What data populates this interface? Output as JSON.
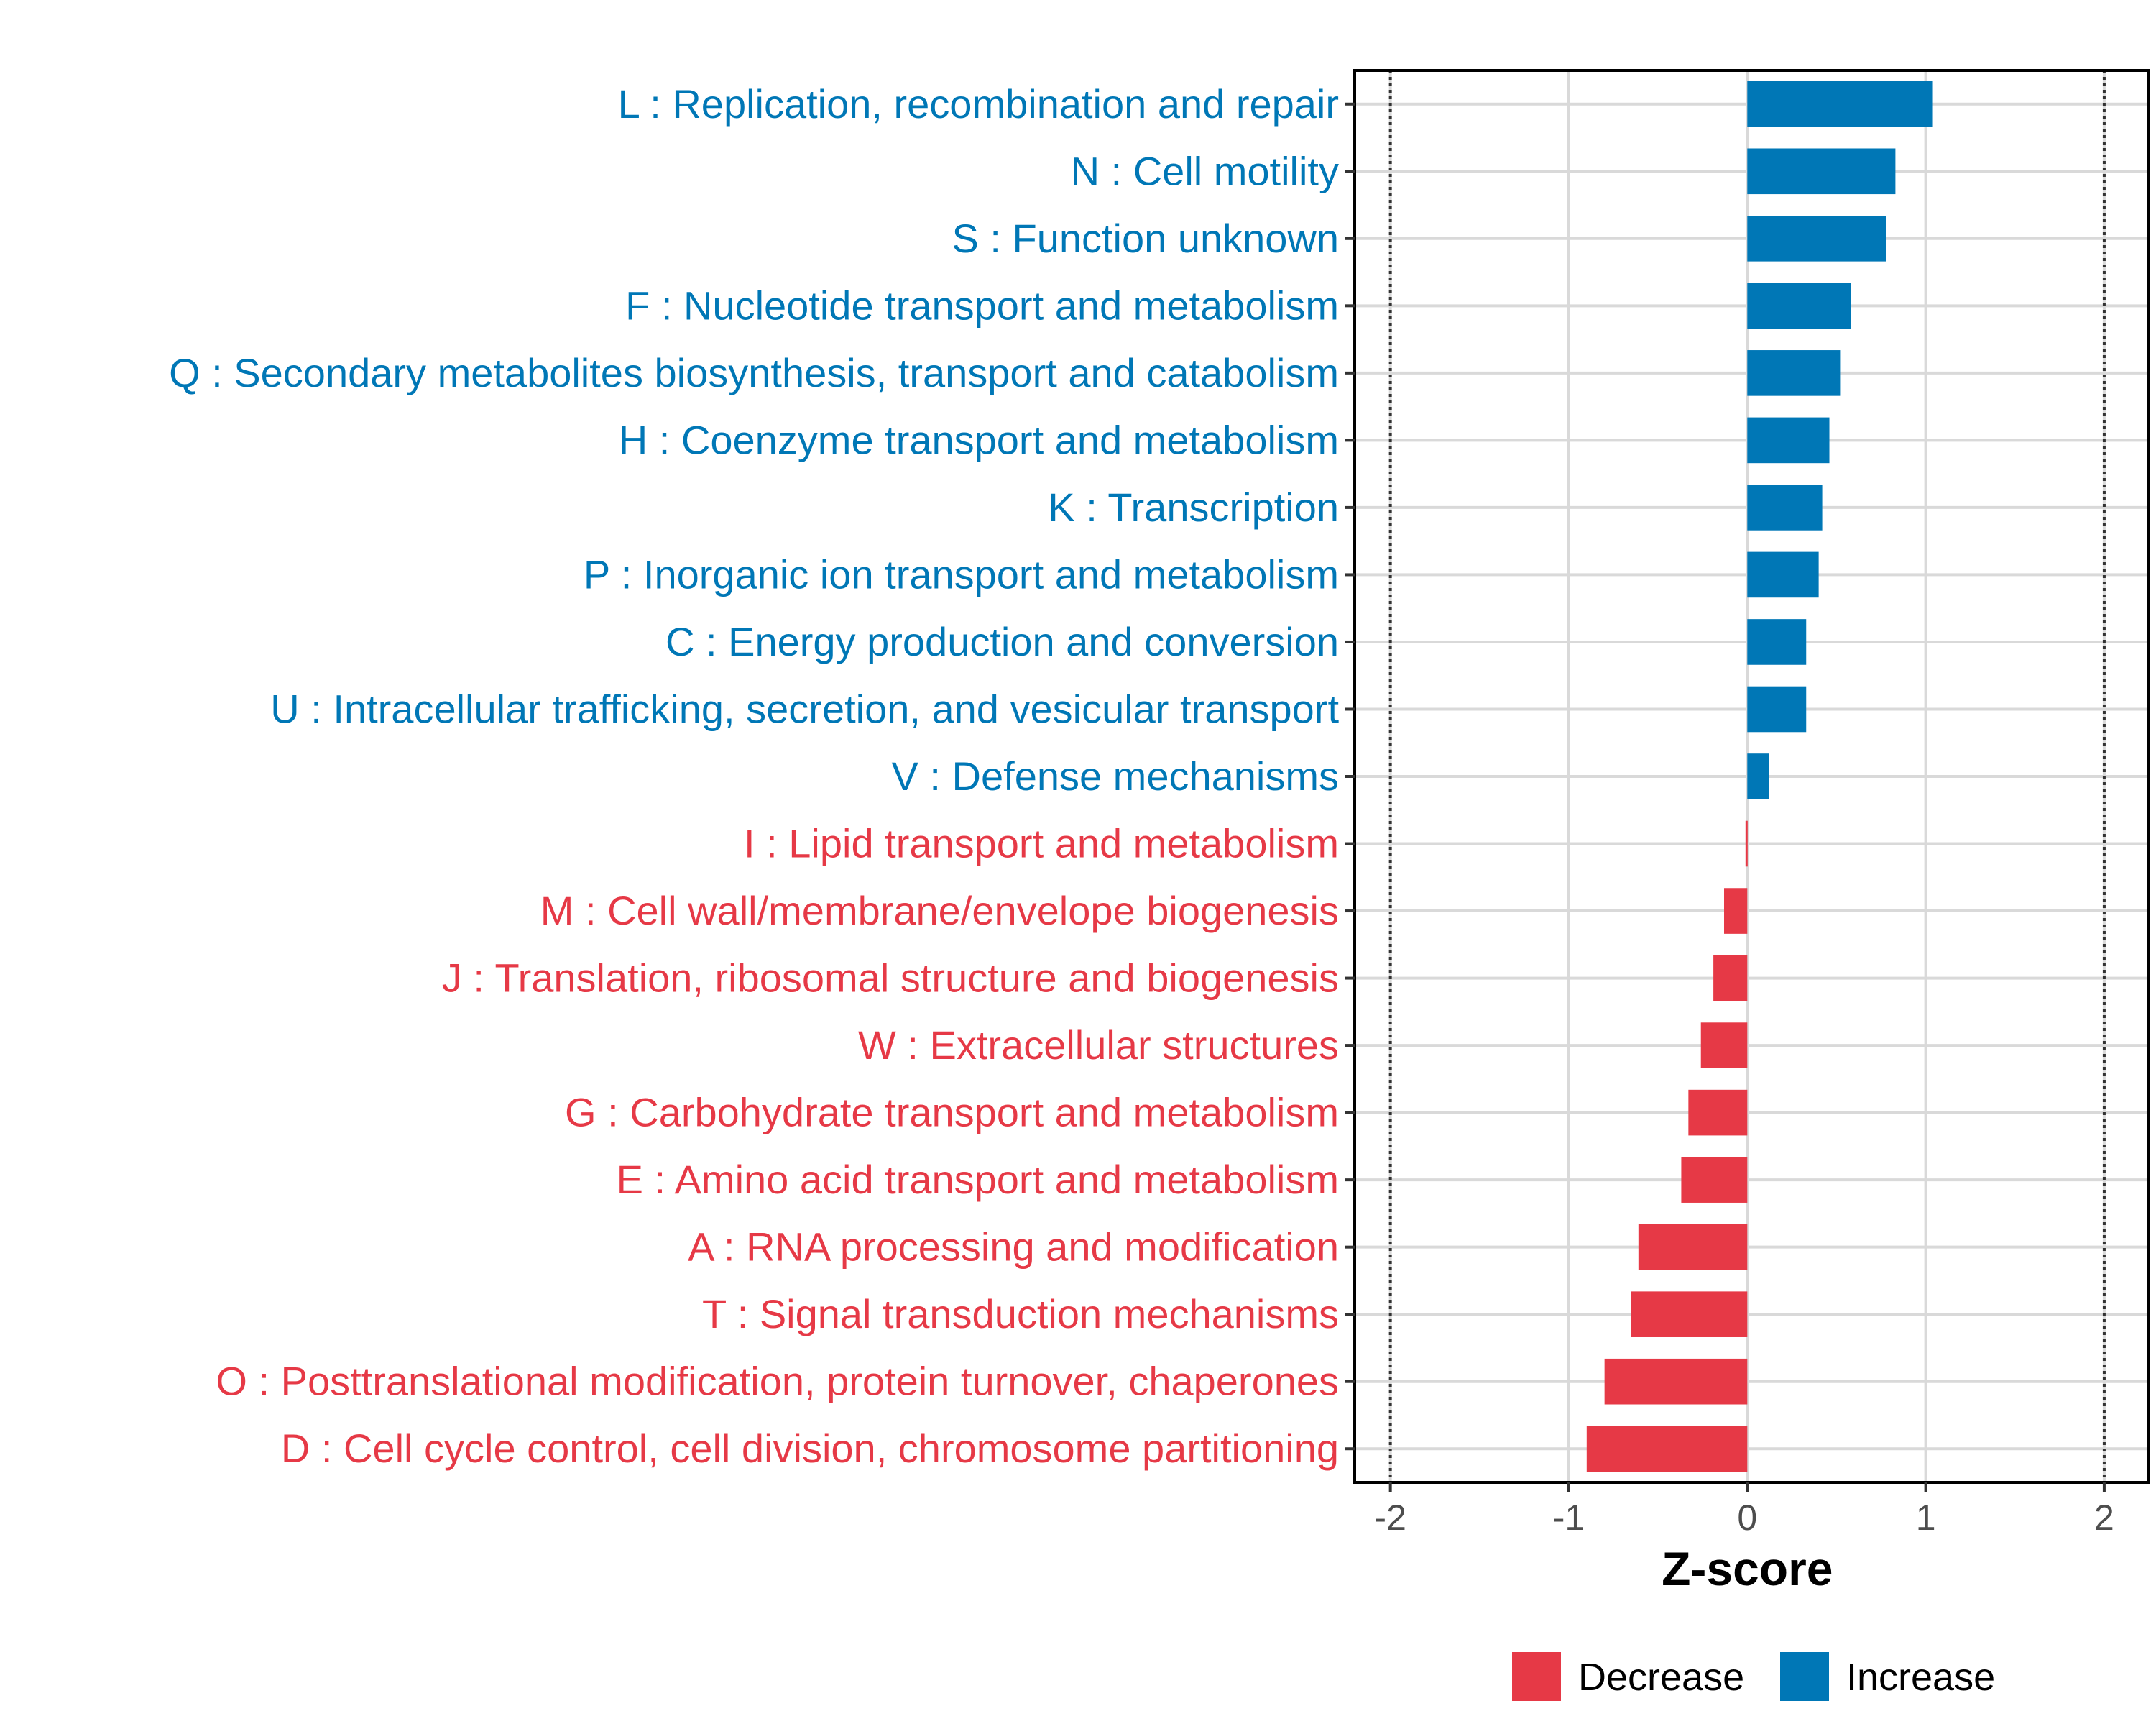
{
  "chart_data": {
    "type": "bar",
    "orientation": "horizontal",
    "xlabel": "Z-score",
    "ylabel": "",
    "xlim": [
      -2.2,
      2.25
    ],
    "x_ticks": [
      -2,
      -1,
      0,
      1,
      2
    ],
    "x_tick_labels": [
      "-2",
      "-1",
      "0",
      "1",
      "2"
    ],
    "reference_lines": [
      -2,
      2
    ],
    "grid": true,
    "legend_position": "bottom",
    "colors": {
      "Decrease": "#e63946",
      "Increase": "#0077b6"
    },
    "legend": [
      {
        "label": "Decrease",
        "color": "#e63946"
      },
      {
        "label": "Increase",
        "color": "#0077b6"
      }
    ],
    "bars": [
      {
        "category": "L : Replication, recombination and repair",
        "value": 1.04,
        "group": "Increase"
      },
      {
        "category": "N : Cell motility",
        "value": 0.83,
        "group": "Increase"
      },
      {
        "category": "S : Function unknown",
        "value": 0.78,
        "group": "Increase"
      },
      {
        "category": "F : Nucleotide transport and metabolism",
        "value": 0.58,
        "group": "Increase"
      },
      {
        "category": "Q : Secondary metabolites biosynthesis, transport and catabolism",
        "value": 0.52,
        "group": "Increase"
      },
      {
        "category": "H : Coenzyme transport and metabolism",
        "value": 0.46,
        "group": "Increase"
      },
      {
        "category": "K : Transcription",
        "value": 0.42,
        "group": "Increase"
      },
      {
        "category": "P : Inorganic ion transport and metabolism",
        "value": 0.4,
        "group": "Increase"
      },
      {
        "category": "C : Energy production and conversion",
        "value": 0.33,
        "group": "Increase"
      },
      {
        "category": "U : Intracellular trafficking, secretion, and vesicular transport",
        "value": 0.33,
        "group": "Increase"
      },
      {
        "category": "V : Defense mechanisms",
        "value": 0.12,
        "group": "Increase"
      },
      {
        "category": "I : Lipid transport and metabolism",
        "value": -0.01,
        "group": "Decrease"
      },
      {
        "category": "M : Cell wall/membrane/envelope biogenesis",
        "value": -0.13,
        "group": "Decrease"
      },
      {
        "category": "J : Translation, ribosomal structure and biogenesis",
        "value": -0.19,
        "group": "Decrease"
      },
      {
        "category": "W : Extracellular structures",
        "value": -0.26,
        "group": "Decrease"
      },
      {
        "category": "G : Carbohydrate transport and metabolism",
        "value": -0.33,
        "group": "Decrease"
      },
      {
        "category": "E : Amino acid transport and metabolism",
        "value": -0.37,
        "group": "Decrease"
      },
      {
        "category": "A : RNA processing and modification",
        "value": -0.61,
        "group": "Decrease"
      },
      {
        "category": "T : Signal transduction mechanisms",
        "value": -0.65,
        "group": "Decrease"
      },
      {
        "category": "O : Posttranslational modification, protein turnover, chaperones",
        "value": -0.8,
        "group": "Decrease"
      },
      {
        "category": "D : Cell cycle control, cell division, chromosome partitioning",
        "value": -0.9,
        "group": "Decrease"
      }
    ]
  }
}
